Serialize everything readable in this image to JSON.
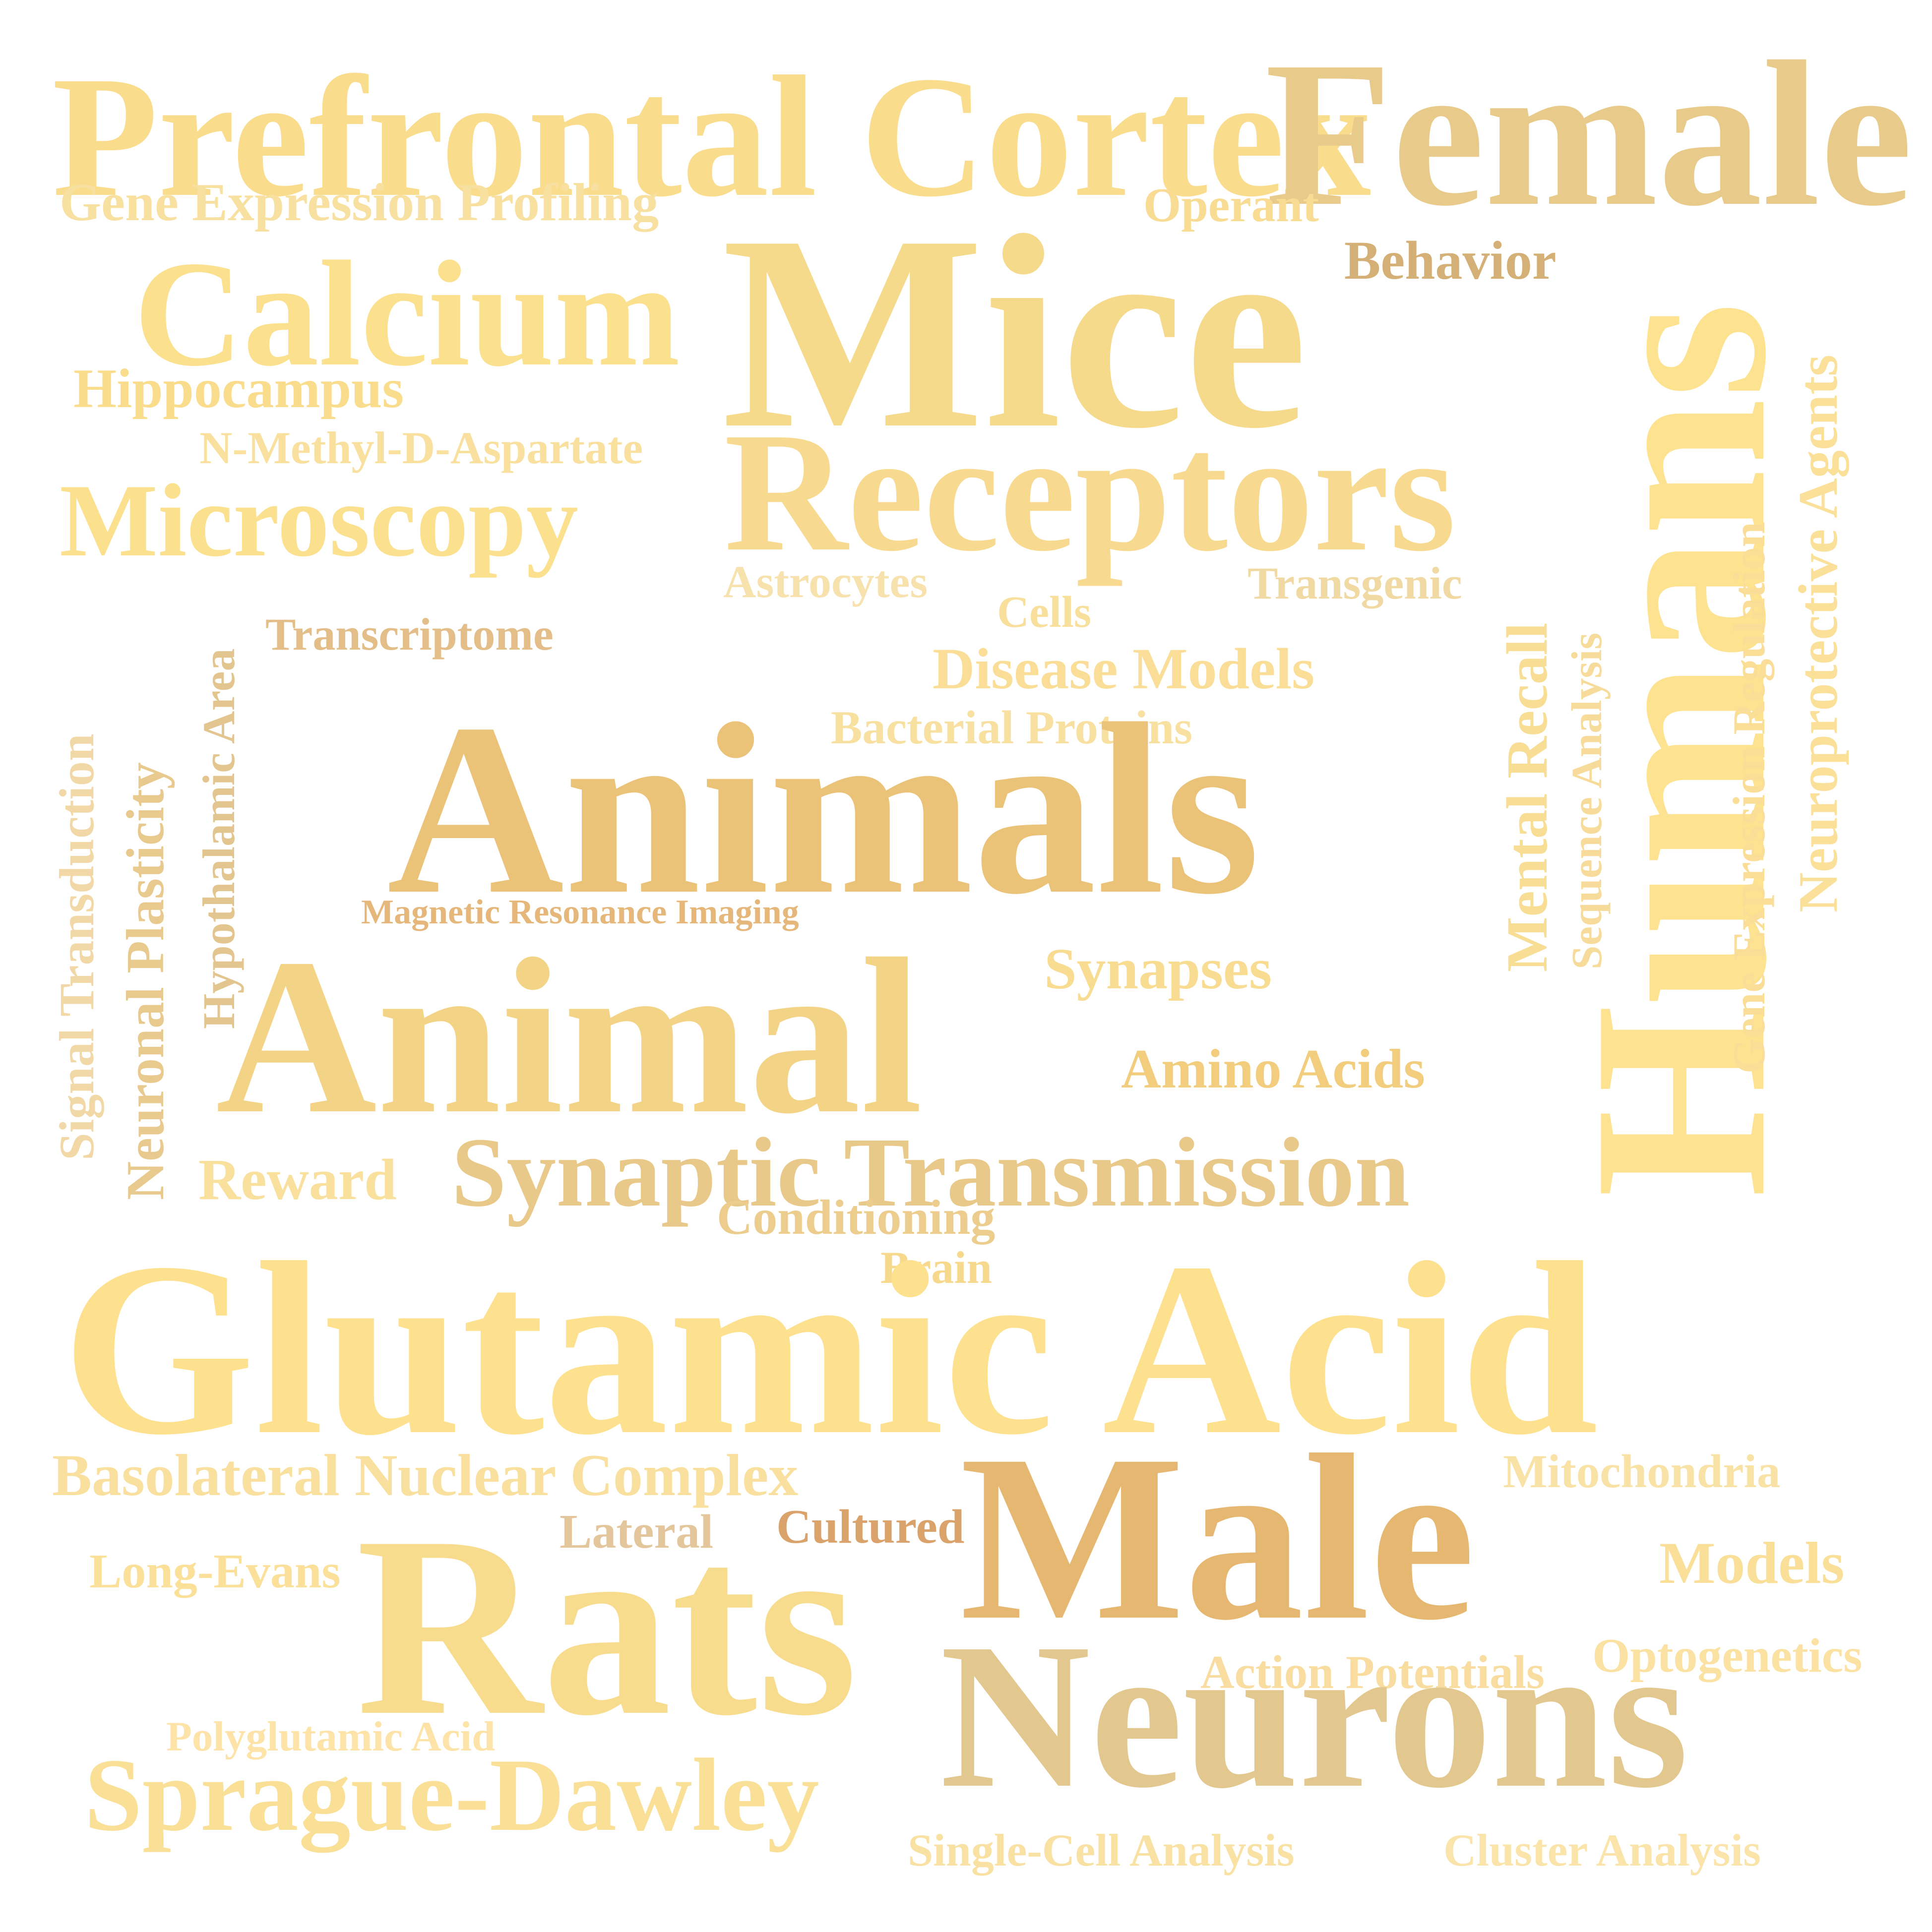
{
  "words": [
    {
      "key": "prefrontal-cortex",
      "text": "Prefrontal Cortex",
      "color": "#F9DC8C"
    },
    {
      "key": "female",
      "text": "Female",
      "color": "#E8CB8A"
    },
    {
      "key": "gene-expression-profiling",
      "text": "Gene Expression Profiling",
      "color": "#F8E1A0"
    },
    {
      "key": "operant",
      "text": "Operant",
      "color": "#F9DC93"
    },
    {
      "key": "mice",
      "text": "Mice",
      "color": "#F6DA8C"
    },
    {
      "key": "behavior",
      "text": "Behavior",
      "color": "#D4B077"
    },
    {
      "key": "calcium",
      "text": "Calcium",
      "color": "#FBE08E"
    },
    {
      "key": "hippocampus",
      "text": "Hippocampus",
      "color": "#F9DC8C"
    },
    {
      "key": "n-methyl-d-aspartate",
      "text": "N-Methyl-D-Aspartate",
      "color": "#F9E09E"
    },
    {
      "key": "receptors",
      "text": "Receptors",
      "color": "#F7DA8F"
    },
    {
      "key": "microscopy",
      "text": "Microscopy",
      "color": "#FBE08E"
    },
    {
      "key": "humans",
      "text": "Humans",
      "color": "#FDE290"
    },
    {
      "key": "neuroprotective-agents",
      "text": "Neuroprotective Agents",
      "color": "#FBE09A"
    },
    {
      "key": "gene-expression-regulation",
      "text": "Gene Expression Regulation",
      "color": "#FADE98"
    },
    {
      "key": "sequence-analysis",
      "text": "Sequence Analysis",
      "color": "#F7DB9B"
    },
    {
      "key": "mental-recall",
      "text": "Mental Recall",
      "color": "#F8DD95"
    },
    {
      "key": "astrocytes",
      "text": "Astrocytes",
      "color": "#F7E2AE"
    },
    {
      "key": "transgenic",
      "text": "Transgenic",
      "color": "#F1D9A4"
    },
    {
      "key": "cells",
      "text": "Cells",
      "color": "#F9DF9C"
    },
    {
      "key": "transcriptome",
      "text": "Transcriptome",
      "color": "#E3BE89"
    },
    {
      "key": "disease-models",
      "text": "Disease Models",
      "color": "#FADE98"
    },
    {
      "key": "bacterial-proteins",
      "text": "Bacterial Proteins",
      "color": "#F8E0A0"
    },
    {
      "key": "signal-transduction",
      "text": "Signal Transduction",
      "color": "#F1D8A6"
    },
    {
      "key": "neuronal-plasticity",
      "text": "Neuronal Plasticity",
      "color": "#E8CA8E"
    },
    {
      "key": "hypothalamic-area",
      "text": "Hypothalamic Area",
      "color": "#E3C68F"
    },
    {
      "key": "animals",
      "text": "Animals",
      "color": "#EAC278"
    },
    {
      "key": "magnetic-resonance-imaging",
      "text": "Magnetic Resonance Imaging",
      "color": "#E5B77A"
    },
    {
      "key": "animal",
      "text": "Animal",
      "color": "#F3D486"
    },
    {
      "key": "synapses",
      "text": "Synapses",
      "color": "#F8DC92"
    },
    {
      "key": "amino-acids",
      "text": "Amino Acids",
      "color": "#F2CD7E"
    },
    {
      "key": "reward",
      "text": "Reward",
      "color": "#F9E09C"
    },
    {
      "key": "synaptic-transmission",
      "text": "Synaptic Transmission",
      "color": "#E9C98A"
    },
    {
      "key": "conditioning",
      "text": "Conditioning",
      "color": "#EDCD8D"
    },
    {
      "key": "brain",
      "text": "Brain",
      "color": "#F7D98E"
    },
    {
      "key": "glutamic-acid",
      "text": "Glutamic Acid",
      "color": "#FDE18E"
    },
    {
      "key": "basolateral-nuclear-complex",
      "text": "Basolateral Nuclear Complex",
      "color": "#F9E09E"
    },
    {
      "key": "mitochondria",
      "text": "Mitochondria",
      "color": "#F9E2A6"
    },
    {
      "key": "lateral",
      "text": "Lateral",
      "color": "#E3C69B"
    },
    {
      "key": "cultured",
      "text": "Cultured",
      "color": "#D9A36B"
    },
    {
      "key": "male",
      "text": "Male",
      "color": "#E5B770"
    },
    {
      "key": "long-evans",
      "text": "Long-Evans",
      "color": "#FBE09A"
    },
    {
      "key": "rats",
      "text": "Rats",
      "color": "#F8DC8E"
    },
    {
      "key": "models",
      "text": "Models",
      "color": "#F9DF98"
    },
    {
      "key": "optogenetics",
      "text": "Optogenetics",
      "color": "#FBE1A2"
    },
    {
      "key": "action-potentials",
      "text": "Action Potentials",
      "color": "#F9DDA0"
    },
    {
      "key": "neurons",
      "text": "Neurons",
      "color": "#E2C78F"
    },
    {
      "key": "polyglutamic-acid",
      "text": "Polyglutamic Acid",
      "color": "#FDE3A8"
    },
    {
      "key": "sprague-dawley",
      "text": "Sprague-Dawley",
      "color": "#FAE096"
    },
    {
      "key": "single-cell-analysis",
      "text": "Single-Cell Analysis",
      "color": "#F9E1A4"
    },
    {
      "key": "cluster-analysis",
      "text": "Cluster Analysis",
      "color": "#FBE4AA"
    }
  ]
}
